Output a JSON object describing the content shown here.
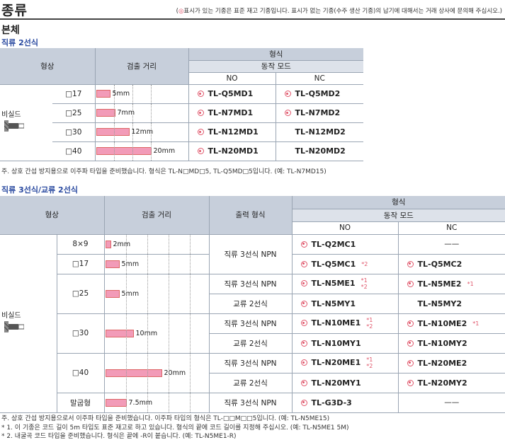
{
  "header": {
    "title": "종류",
    "note_mark": "◎",
    "note": "표시가 있는 기종은 표준 재고 기종입니다. 표시가 없는 기종(수주 생산 기종)의 납기에 대해서는 거래 상사에 문의해 주십시오.",
    "paren_open": "(",
    "paren_close": ")"
  },
  "section": "본체",
  "table1": {
    "subtitle": "직류 2선식",
    "col_shape": "형상",
    "col_distance": "검출 거리",
    "col_model": "형식",
    "col_mode": "동작 모드",
    "col_no": "NO",
    "col_nc": "NC",
    "shape_label": "비실드",
    "rows": [
      {
        "size": "□17",
        "dist": "5",
        "unit": "mm",
        "bar": 5,
        "no": "TL-Q5MD1",
        "no_stock": true,
        "nc": "TL-Q5MD2",
        "nc_stock": true
      },
      {
        "size": "□25",
        "dist": "7",
        "unit": "mm",
        "bar": 7,
        "no": "TL-N7MD1",
        "no_stock": true,
        "nc": "TL-N7MD2",
        "nc_stock": true
      },
      {
        "size": "□30",
        "dist": "12",
        "unit": "mm",
        "bar": 12,
        "no": "TL-N12MD1",
        "no_stock": true,
        "nc": "TL-N12MD2",
        "nc_stock": false
      },
      {
        "size": "□40",
        "dist": "20",
        "unit": "mm",
        "bar": 20,
        "no": "TL-N20MD1",
        "no_stock": true,
        "nc": "TL-N20MD2",
        "nc_stock": false
      }
    ],
    "footnote": "주. 상호 간섭 방지용으로 이주파 타입을 준비했습니다. 형식은 TL-N□MD□5, TL-Q5MD□5입니다. (예: TL-N7MD15)"
  },
  "table2": {
    "subtitle": "직류 3선식/교류 2선식",
    "col_shape": "형상",
    "col_distance": "검출 거리",
    "col_output": "출력 형식",
    "col_model": "형식",
    "col_mode": "동작 모드",
    "col_no": "NO",
    "col_nc": "NC",
    "shape_label": "비실드",
    "dash": "——",
    "rows": [
      {
        "size": "8×9",
        "dist": "2",
        "unit": "mm",
        "bar": 2,
        "out": "직류 3선식 NPN",
        "no": "TL-Q2MC1",
        "no_stock": true,
        "no_star": "",
        "nc": "",
        "nc_stock": false,
        "nc_star": ""
      },
      {
        "size": "□17",
        "dist": "5",
        "unit": "mm",
        "bar": 5,
        "out": "",
        "no": "TL-Q5MC1",
        "no_stock": true,
        "no_star": "*2",
        "nc": "TL-Q5MC2",
        "nc_stock": true,
        "nc_star": ""
      },
      {
        "size": "□25",
        "dist": "5",
        "unit": "mm",
        "bar": 5,
        "out": "직류 3선식 NPN",
        "no": "TL-N5ME1",
        "no_stock": true,
        "no_star": "*1 *2",
        "nc": "TL-N5ME2",
        "nc_stock": true,
        "nc_star": "*1"
      },
      {
        "size": "",
        "dist": "",
        "unit": "",
        "bar": 0,
        "out": "교류 2선식",
        "no": "TL-N5MY1",
        "no_stock": true,
        "no_star": "",
        "nc": "TL-N5MY2",
        "nc_stock": false,
        "nc_star": ""
      },
      {
        "size": "□30",
        "dist": "10",
        "unit": "mm",
        "bar": 10,
        "out": "직류 3선식 NPN",
        "no": "TL-N10ME1",
        "no_stock": true,
        "no_star": "*1 *2",
        "nc": "TL-N10ME2",
        "nc_stock": true,
        "nc_star": "*1"
      },
      {
        "size": "",
        "dist": "",
        "unit": "",
        "bar": 0,
        "out": "교류 2선식",
        "no": "TL-N10MY1",
        "no_stock": true,
        "no_star": "",
        "nc": "TL-N10MY2",
        "nc_stock": true,
        "nc_star": ""
      },
      {
        "size": "□40",
        "dist": "20",
        "unit": "mm",
        "bar": 20,
        "out": "직류 3선식 NPN",
        "no": "TL-N20ME1",
        "no_stock": true,
        "no_star": "*1 *2",
        "nc": "TL-N20ME2",
        "nc_stock": true,
        "nc_star": ""
      },
      {
        "size": "",
        "dist": "",
        "unit": "",
        "bar": 0,
        "out": "교류 2선식",
        "no": "TL-N20MY1",
        "no_stock": true,
        "no_star": "",
        "nc": "TL-N20MY2",
        "nc_stock": true,
        "nc_star": ""
      },
      {
        "size": "말굽형",
        "dist": "7.5",
        "unit": "mm",
        "bar": 7.5,
        "out": "직류 3선식 NPN",
        "no": "TL-G3D-3",
        "no_stock": true,
        "no_star": "",
        "nc": "",
        "nc_stock": false,
        "nc_star": ""
      }
    ],
    "footnotes": [
      "주. 상호 간섭 방지용으로서 이주파 타입을 준비했습니다. 이주파 타입의 형식은 TL-□□M□□5입니다. (예: TL-N5ME15)",
      "* 1. 이 기종은 코드 길이 5m 타입도 표준 재고로 하고 있습니다. 형식의 끝에 코드 길이를 지정해 주십시오. (예: TL-N5ME1 5M)",
      "* 2. 내굴곡 코드 타입을 준비했습니다. 형식은 끝에 -R이 붙습니다. (예: TL-N5ME1-R)"
    ]
  },
  "colors": {
    "accent": "#e0556a",
    "header_bg": "#c7cfdb",
    "subtitle": "#2a4aa0",
    "bar": "#f29bb8"
  }
}
